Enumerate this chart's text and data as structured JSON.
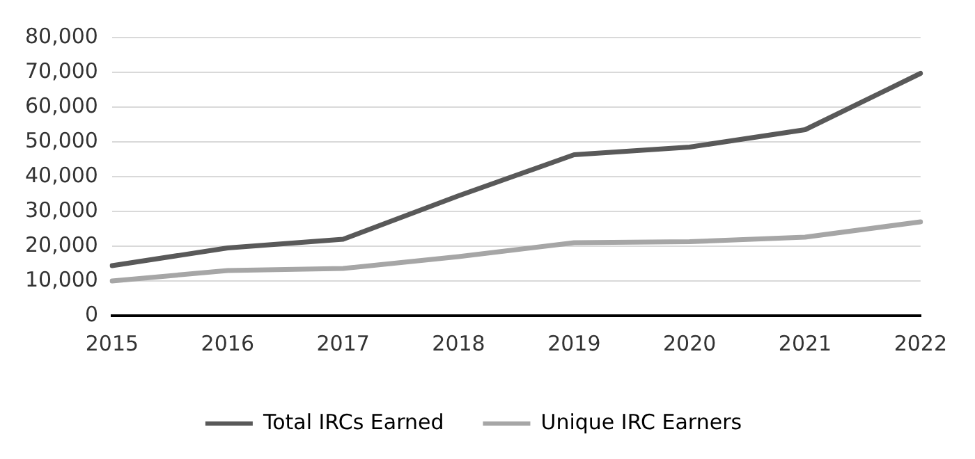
{
  "chart_data": {
    "type": "line",
    "categories": [
      "2015",
      "2016",
      "2017",
      "2018",
      "2019",
      "2020",
      "2021",
      "2022"
    ],
    "series": [
      {
        "name": "Total IRCs Earned",
        "color": "#595959",
        "values": [
          14400,
          19500,
          22000,
          34500,
          46300,
          48500,
          53500,
          69700
        ]
      },
      {
        "name": "Unique IRC Earners",
        "color": "#a6a6a6",
        "values": [
          10000,
          13000,
          13600,
          17000,
          21000,
          21300,
          22600,
          27000
        ]
      }
    ],
    "ylim": [
      0,
      80000
    ],
    "yticks": [
      {
        "value": 0,
        "label": "0"
      },
      {
        "value": 10000,
        "label": "10,000"
      },
      {
        "value": 20000,
        "label": "20,000"
      },
      {
        "value": 30000,
        "label": "30,000"
      },
      {
        "value": 40000,
        "label": "40,000"
      },
      {
        "value": 50000,
        "label": "50,000"
      },
      {
        "value": 60000,
        "label": "60,000"
      },
      {
        "value": 70000,
        "label": "70,000"
      },
      {
        "value": 80000,
        "label": "80,000"
      }
    ],
    "grid": "y",
    "legend": "bottom",
    "marker": "none",
    "line_style": "solid"
  }
}
